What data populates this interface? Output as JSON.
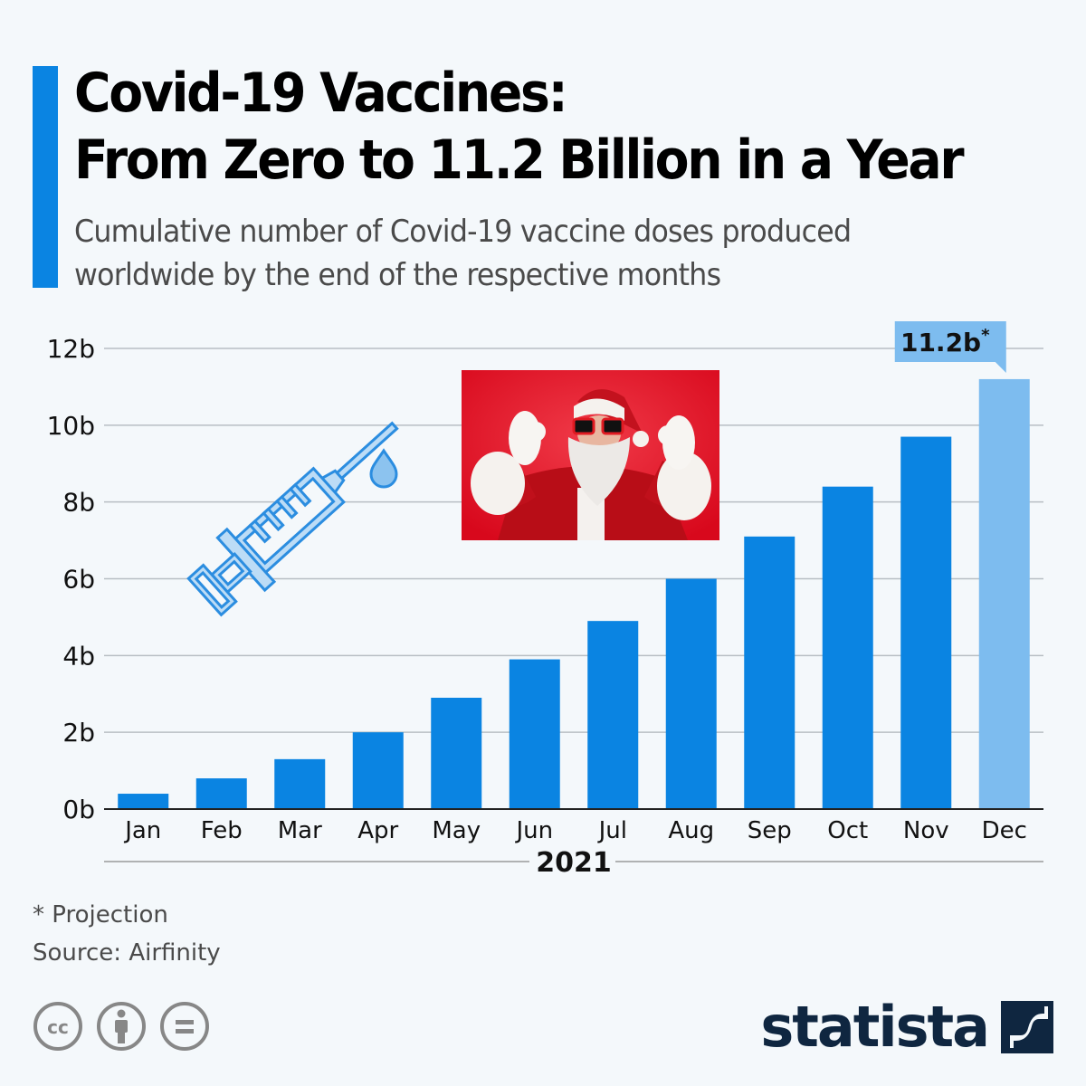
{
  "header": {
    "title_line1": "Covid-19 Vaccines:",
    "title_line2": "From Zero to 11.2 Billion in a Year",
    "subtitle_line1": "Cumulative number of Covid-19 vaccine doses produced",
    "subtitle_line2": "worldwide by the end of the respective months"
  },
  "colors": {
    "accent": "#0a84e2",
    "bar": "#0a84e2",
    "bar_projection": "#7dbcef",
    "background": "#f4f8fb",
    "gridline": "#b8bec4",
    "logo": "#0f2640"
  },
  "chart_data": {
    "type": "bar",
    "title": "Covid-19 Vaccines: From Zero to 11.2 Billion in a Year",
    "subtitle": "Cumulative number of Covid-19 vaccine doses produced worldwide by the end of the respective months",
    "xlabel": "2021",
    "ylabel": "",
    "unit": "billion doses",
    "categories": [
      "Jan",
      "Feb",
      "Mar",
      "Apr",
      "May",
      "Jun",
      "Jul",
      "Aug",
      "Sep",
      "Oct",
      "Nov",
      "Dec"
    ],
    "values": [
      0.4,
      0.8,
      1.3,
      2.0,
      2.9,
      3.9,
      4.9,
      6.0,
      7.1,
      8.4,
      9.7,
      11.2
    ],
    "projection": [
      false,
      false,
      false,
      false,
      false,
      false,
      false,
      false,
      false,
      false,
      false,
      true
    ],
    "ylim": [
      0,
      12
    ],
    "yticks": [
      0,
      2,
      4,
      6,
      8,
      10,
      12
    ],
    "ytick_labels": [
      "0b",
      "2b",
      "4b",
      "6b",
      "8b",
      "10b",
      "12b"
    ],
    "grid": true,
    "annotations": [
      {
        "category": "Dec",
        "text": "11.2b",
        "superscript": "*"
      }
    ],
    "legend": "none"
  },
  "illustrations": {
    "syringe": "syringe-icon",
    "photo": "santa-claus-photo"
  },
  "footer": {
    "note": "* Projection",
    "source": "Source: Airfinity",
    "license_icons": [
      "creative-commons-icon",
      "attribution-icon",
      "no-derivatives-icon"
    ],
    "brand": "statista"
  }
}
